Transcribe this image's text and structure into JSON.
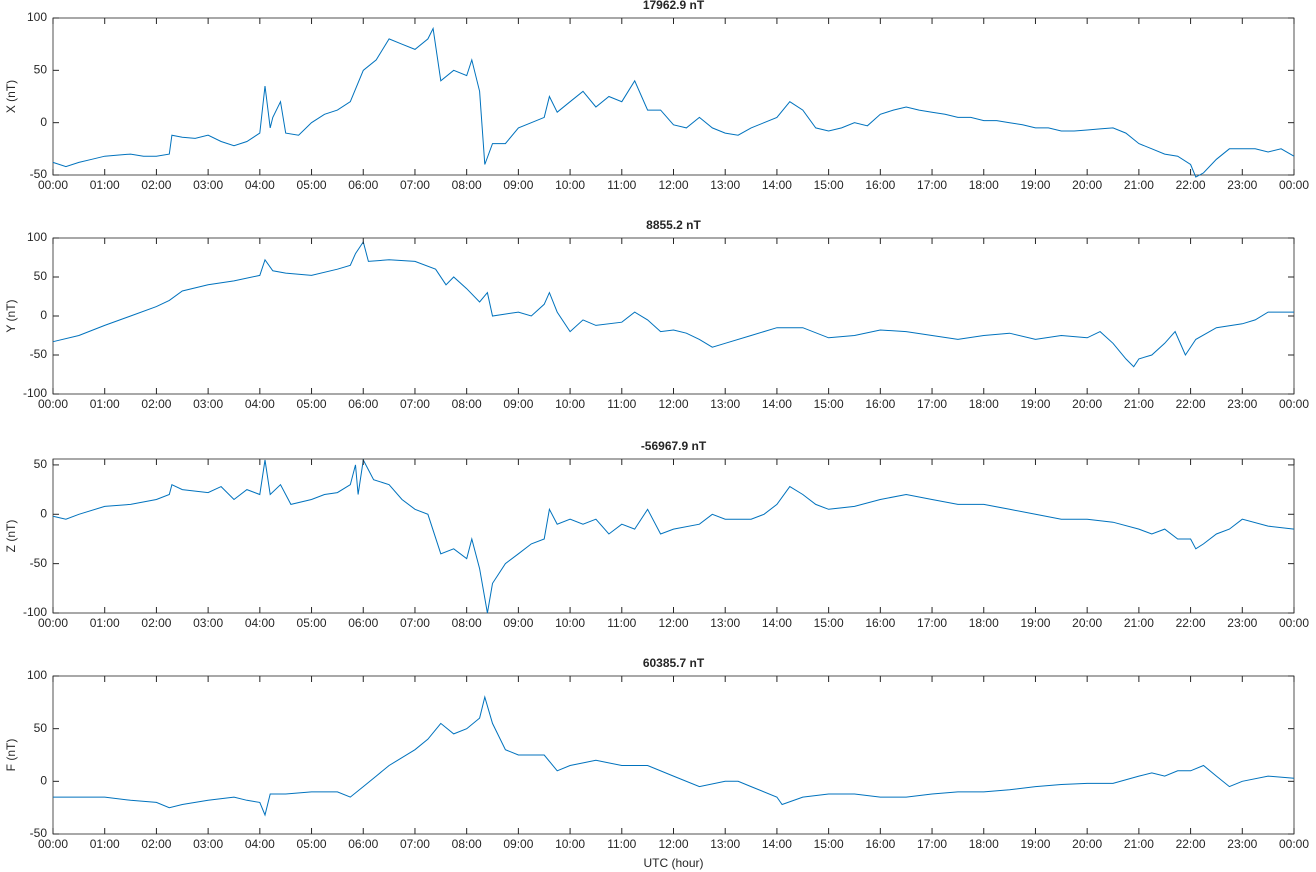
{
  "chart_data": [
    {
      "type": "line",
      "title": "17962.9 nT",
      "y_label": "X (nT)",
      "color": "#0072bd",
      "xlim": [
        0,
        24
      ],
      "ylim": [
        -50,
        100
      ],
      "yticks": [
        -50,
        0,
        50,
        100
      ],
      "xticks": [
        {
          "value": 0,
          "label": "00:00"
        },
        {
          "value": 1,
          "label": "01:00"
        },
        {
          "value": 2,
          "label": "02:00"
        },
        {
          "value": 3,
          "label": "03:00"
        },
        {
          "value": 4,
          "label": "04:00"
        },
        {
          "value": 5,
          "label": "05:00"
        },
        {
          "value": 6,
          "label": "06:00"
        },
        {
          "value": 7,
          "label": "07:00"
        },
        {
          "value": 8,
          "label": "08:00"
        },
        {
          "value": 9,
          "label": "09:00"
        },
        {
          "value": 10,
          "label": "10:00"
        },
        {
          "value": 11,
          "label": "11:00"
        },
        {
          "value": 12,
          "label": "12:00"
        },
        {
          "value": 13,
          "label": "13:00"
        },
        {
          "value": 14,
          "label": "14:00"
        },
        {
          "value": 15,
          "label": "15:00"
        },
        {
          "value": 16,
          "label": "16:00"
        },
        {
          "value": 17,
          "label": "17:00"
        },
        {
          "value": 18,
          "label": "18:00"
        },
        {
          "value": 19,
          "label": "19:00"
        },
        {
          "value": 20,
          "label": "20:00"
        },
        {
          "value": 21,
          "label": "21:00"
        },
        {
          "value": 22,
          "label": "22:00"
        },
        {
          "value": 23,
          "label": "23:00"
        },
        {
          "value": 24,
          "label": "00:00"
        }
      ],
      "x": [
        0,
        0.25,
        0.5,
        0.75,
        1,
        1.25,
        1.5,
        1.75,
        2,
        2.25,
        2.3,
        2.5,
        2.75,
        3,
        3.25,
        3.5,
        3.75,
        4,
        4.1,
        4.2,
        4.25,
        4.4,
        4.5,
        4.75,
        5,
        5.25,
        5.5,
        5.75,
        6,
        6.25,
        6.5,
        6.75,
        7,
        7.25,
        7.35,
        7.5,
        7.75,
        8,
        8.1,
        8.25,
        8.35,
        8.5,
        8.75,
        9,
        9.25,
        9.5,
        9.6,
        9.75,
        10,
        10.25,
        10.5,
        10.75,
        11,
        11.25,
        11.5,
        11.75,
        12,
        12.25,
        12.5,
        12.75,
        13,
        13.25,
        13.5,
        13.75,
        14,
        14.25,
        14.5,
        14.75,
        15,
        15.25,
        15.5,
        15.75,
        16,
        16.25,
        16.5,
        16.75,
        17,
        17.25,
        17.5,
        17.75,
        18,
        18.25,
        18.5,
        18.75,
        19,
        19.25,
        19.5,
        19.75,
        20,
        20.25,
        20.5,
        20.75,
        21,
        21.25,
        21.5,
        21.75,
        22,
        22.1,
        22.25,
        22.5,
        22.75,
        23,
        23.25,
        23.5,
        23.75,
        24
      ],
      "values": [
        -38,
        -42,
        -38,
        -35,
        -32,
        -31,
        -30,
        -32,
        -32,
        -30,
        -12,
        -14,
        -15,
        -12,
        -18,
        -22,
        -18,
        -10,
        35,
        -5,
        5,
        20,
        -10,
        -12,
        0,
        8,
        12,
        20,
        50,
        60,
        80,
        75,
        70,
        80,
        90,
        40,
        50,
        45,
        60,
        30,
        -40,
        -20,
        -20,
        -5,
        0,
        5,
        25,
        10,
        20,
        30,
        15,
        25,
        20,
        40,
        12,
        12,
        -2,
        -5,
        5,
        -5,
        -10,
        -12,
        -5,
        0,
        5,
        20,
        12,
        -5,
        -8,
        -5,
        0,
        -3,
        8,
        12,
        15,
        12,
        10,
        8,
        5,
        5,
        2,
        2,
        0,
        -2,
        -5,
        -5,
        -8,
        -8,
        -7,
        -6,
        -5,
        -10,
        -20,
        -25,
        -30,
        -32,
        -40,
        -52,
        -48,
        -35,
        -25,
        -25,
        -25,
        -28,
        -25,
        -32
      ]
    },
    {
      "type": "line",
      "title": "8855.2 nT",
      "y_label": "Y (nT)",
      "color": "#0072bd",
      "xlim": [
        0,
        24
      ],
      "ylim": [
        -100,
        100
      ],
      "yticks": [
        -100,
        -50,
        0,
        50,
        100
      ],
      "xticks": [
        {
          "value": 0,
          "label": "00:00"
        },
        {
          "value": 1,
          "label": "01:00"
        },
        {
          "value": 2,
          "label": "02:00"
        },
        {
          "value": 3,
          "label": "03:00"
        },
        {
          "value": 4,
          "label": "04:00"
        },
        {
          "value": 5,
          "label": "05:00"
        },
        {
          "value": 6,
          "label": "06:00"
        },
        {
          "value": 7,
          "label": "07:00"
        },
        {
          "value": 8,
          "label": "08:00"
        },
        {
          "value": 9,
          "label": "09:00"
        },
        {
          "value": 10,
          "label": "10:00"
        },
        {
          "value": 11,
          "label": "11:00"
        },
        {
          "value": 12,
          "label": "12:00"
        },
        {
          "value": 13,
          "label": "13:00"
        },
        {
          "value": 14,
          "label": "14:00"
        },
        {
          "value": 15,
          "label": "15:00"
        },
        {
          "value": 16,
          "label": "16:00"
        },
        {
          "value": 17,
          "label": "17:00"
        },
        {
          "value": 18,
          "label": "18:00"
        },
        {
          "value": 19,
          "label": "19:00"
        },
        {
          "value": 20,
          "label": "20:00"
        },
        {
          "value": 21,
          "label": "21:00"
        },
        {
          "value": 22,
          "label": "22:00"
        },
        {
          "value": 23,
          "label": "23:00"
        },
        {
          "value": 24,
          "label": "00:00"
        }
      ],
      "x": [
        0,
        0.5,
        1,
        1.5,
        2,
        2.25,
        2.5,
        3,
        3.5,
        4,
        4.1,
        4.25,
        4.5,
        5,
        5.5,
        5.75,
        5.85,
        6,
        6.1,
        6.5,
        7,
        7.4,
        7.6,
        7.75,
        8,
        8.25,
        8.4,
        8.5,
        9,
        9.25,
        9.5,
        9.6,
        9.75,
        10,
        10.25,
        10.5,
        11,
        11.25,
        11.5,
        11.75,
        12,
        12.25,
        12.5,
        12.75,
        13,
        13.5,
        14,
        14.5,
        15,
        15.5,
        16,
        16.5,
        17,
        17.5,
        18,
        18.5,
        19,
        19.5,
        20,
        20.25,
        20.5,
        20.75,
        20.9,
        21,
        21.25,
        21.5,
        21.7,
        21.9,
        22.1,
        22.5,
        23,
        23.25,
        23.5,
        24
      ],
      "values": [
        -33,
        -25,
        -12,
        0,
        12,
        20,
        32,
        40,
        45,
        52,
        72,
        58,
        55,
        52,
        60,
        65,
        80,
        95,
        70,
        72,
        70,
        60,
        40,
        50,
        35,
        18,
        30,
        0,
        5,
        0,
        15,
        30,
        5,
        -20,
        -5,
        -12,
        -8,
        5,
        -5,
        -20,
        -18,
        -22,
        -30,
        -40,
        -35,
        -25,
        -15,
        -15,
        -28,
        -25,
        -18,
        -20,
        -25,
        -30,
        -25,
        -22,
        -30,
        -25,
        -28,
        -20,
        -35,
        -55,
        -65,
        -55,
        -50,
        -35,
        -20,
        -50,
        -30,
        -15,
        -10,
        -5,
        5,
        5
      ]
    },
    {
      "type": "line",
      "title": "-56967.9 nT",
      "y_label": "Z (nT)",
      "color": "#0072bd",
      "xlim": [
        0,
        24
      ],
      "ylim": [
        -100,
        56
      ],
      "yticks": [
        -100,
        -50,
        0,
        50
      ],
      "xticks": [
        {
          "value": 0,
          "label": "00:00"
        },
        {
          "value": 1,
          "label": "01:00"
        },
        {
          "value": 2,
          "label": "02:00"
        },
        {
          "value": 3,
          "label": "03:00"
        },
        {
          "value": 4,
          "label": "04:00"
        },
        {
          "value": 5,
          "label": "05:00"
        },
        {
          "value": 6,
          "label": "06:00"
        },
        {
          "value": 7,
          "label": "07:00"
        },
        {
          "value": 8,
          "label": "08:00"
        },
        {
          "value": 9,
          "label": "09:00"
        },
        {
          "value": 10,
          "label": "10:00"
        },
        {
          "value": 11,
          "label": "11:00"
        },
        {
          "value": 12,
          "label": "12:00"
        },
        {
          "value": 13,
          "label": "13:00"
        },
        {
          "value": 14,
          "label": "14:00"
        },
        {
          "value": 15,
          "label": "15:00"
        },
        {
          "value": 16,
          "label": "16:00"
        },
        {
          "value": 17,
          "label": "17:00"
        },
        {
          "value": 18,
          "label": "18:00"
        },
        {
          "value": 19,
          "label": "19:00"
        },
        {
          "value": 20,
          "label": "20:00"
        },
        {
          "value": 21,
          "label": "21:00"
        },
        {
          "value": 22,
          "label": "22:00"
        },
        {
          "value": 23,
          "label": "23:00"
        },
        {
          "value": 24,
          "label": "00:00"
        }
      ],
      "x": [
        0,
        0.25,
        0.5,
        1,
        1.5,
        2,
        2.25,
        2.3,
        2.5,
        3,
        3.25,
        3.5,
        3.75,
        4,
        4.1,
        4.2,
        4.4,
        4.6,
        5,
        5.25,
        5.5,
        5.75,
        5.85,
        5.9,
        6,
        6.2,
        6.5,
        6.75,
        7,
        7.25,
        7.5,
        7.75,
        8,
        8.1,
        8.25,
        8.4,
        8.5,
        8.75,
        9,
        9.25,
        9.5,
        9.6,
        9.75,
        10,
        10.25,
        10.5,
        10.75,
        11,
        11.25,
        11.5,
        11.75,
        12,
        12.5,
        12.75,
        13,
        13.5,
        13.75,
        14,
        14.25,
        14.5,
        14.75,
        15,
        15.5,
        16,
        16.5,
        17,
        17.5,
        18,
        18.5,
        19,
        19.5,
        20,
        20.5,
        21,
        21.25,
        21.5,
        21.75,
        22,
        22.1,
        22.25,
        22.5,
        22.75,
        23,
        23.5,
        24
      ],
      "values": [
        -2,
        -5,
        0,
        8,
        10,
        15,
        20,
        30,
        25,
        22,
        28,
        15,
        25,
        20,
        55,
        20,
        30,
        10,
        15,
        20,
        22,
        30,
        50,
        20,
        55,
        35,
        30,
        15,
        5,
        0,
        -40,
        -35,
        -45,
        -25,
        -55,
        -100,
        -70,
        -50,
        -40,
        -30,
        -25,
        5,
        -10,
        -5,
        -10,
        -5,
        -20,
        -10,
        -15,
        5,
        -20,
        -15,
        -10,
        0,
        -5,
        -5,
        0,
        10,
        28,
        20,
        10,
        5,
        8,
        15,
        20,
        15,
        10,
        10,
        5,
        0,
        -5,
        -5,
        -8,
        -15,
        -20,
        -15,
        -25,
        -25,
        -35,
        -30,
        -20,
        -15,
        -5,
        -12,
        -15
      ]
    },
    {
      "type": "line",
      "title": "60385.7 nT",
      "y_label": "F (nT)",
      "x_label": "UTC (hour)",
      "color": "#0072bd",
      "xlim": [
        0,
        24
      ],
      "ylim": [
        -50,
        100
      ],
      "yticks": [
        -50,
        0,
        50,
        100
      ],
      "xticks": [
        {
          "value": 0,
          "label": "00:00"
        },
        {
          "value": 1,
          "label": "01:00"
        },
        {
          "value": 2,
          "label": "02:00"
        },
        {
          "value": 3,
          "label": "03:00"
        },
        {
          "value": 4,
          "label": "04:00"
        },
        {
          "value": 5,
          "label": "05:00"
        },
        {
          "value": 6,
          "label": "06:00"
        },
        {
          "value": 7,
          "label": "07:00"
        },
        {
          "value": 8,
          "label": "08:00"
        },
        {
          "value": 9,
          "label": "09:00"
        },
        {
          "value": 10,
          "label": "10:00"
        },
        {
          "value": 11,
          "label": "11:00"
        },
        {
          "value": 12,
          "label": "12:00"
        },
        {
          "value": 13,
          "label": "13:00"
        },
        {
          "value": 14,
          "label": "14:00"
        },
        {
          "value": 15,
          "label": "15:00"
        },
        {
          "value": 16,
          "label": "16:00"
        },
        {
          "value": 17,
          "label": "17:00"
        },
        {
          "value": 18,
          "label": "18:00"
        },
        {
          "value": 19,
          "label": "19:00"
        },
        {
          "value": 20,
          "label": "20:00"
        },
        {
          "value": 21,
          "label": "21:00"
        },
        {
          "value": 22,
          "label": "22:00"
        },
        {
          "value": 23,
          "label": "23:00"
        },
        {
          "value": 24,
          "label": "00:00"
        }
      ],
      "x": [
        0,
        0.5,
        1,
        1.5,
        2,
        2.25,
        2.5,
        3,
        3.5,
        3.75,
        4,
        4.1,
        4.2,
        4.5,
        5,
        5.5,
        5.75,
        6,
        6.25,
        6.5,
        7,
        7.25,
        7.5,
        7.75,
        8,
        8.25,
        8.35,
        8.5,
        8.75,
        9,
        9.5,
        9.75,
        10,
        10.5,
        11,
        11.5,
        12,
        12.5,
        13,
        13.25,
        13.5,
        14,
        14.1,
        14.5,
        15,
        15.5,
        16,
        16.5,
        17,
        17.5,
        18,
        18.5,
        19,
        19.5,
        20,
        20.5,
        21,
        21.25,
        21.5,
        21.75,
        22,
        22.25,
        22.5,
        22.75,
        23,
        23.5,
        24
      ],
      "values": [
        -15,
        -15,
        -15,
        -18,
        -20,
        -25,
        -22,
        -18,
        -15,
        -18,
        -20,
        -32,
        -12,
        -12,
        -10,
        -10,
        -15,
        -5,
        5,
        15,
        30,
        40,
        55,
        45,
        50,
        60,
        80,
        55,
        30,
        25,
        25,
        10,
        15,
        20,
        15,
        15,
        5,
        -5,
        0,
        0,
        -5,
        -15,
        -22,
        -15,
        -12,
        -12,
        -15,
        -15,
        -12,
        -10,
        -10,
        -8,
        -5,
        -3,
        -2,
        -2,
        5,
        8,
        5,
        10,
        10,
        15,
        5,
        -5,
        0,
        5,
        3
      ]
    }
  ]
}
